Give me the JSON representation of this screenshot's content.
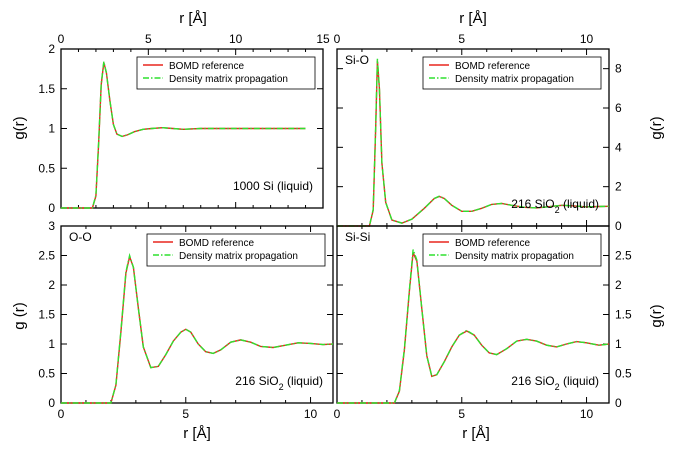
{
  "figure": {
    "top_xlabel_left": "r [Å]",
    "top_xlabel_right": "r [Å]",
    "bottom_xlabel_left": "r [Å]",
    "bottom_xlabel_right": "r [Å]",
    "ylabel_left_top": "g(r)",
    "ylabel_left_bottom": "g (r)",
    "ylabel_right_top": "g(r)",
    "ylabel_right_bottom": "g(r)"
  },
  "colors": {
    "reference": "#e8271f",
    "propagation": "#2fe02f"
  },
  "chart_data": [
    {
      "type": "line",
      "panel": "top-left",
      "label": "",
      "annotation": "1000 Si (liquid)",
      "xlim": [
        0,
        15
      ],
      "ylim": [
        0,
        2
      ],
      "xticks": [
        0,
        5,
        10,
        15
      ],
      "yticks": [
        0,
        0.5,
        1,
        1.5,
        2
      ],
      "xtick_labels": [
        "0",
        "5",
        "10",
        "15"
      ],
      "ytick_labels": [
        "0",
        "0.5",
        "1",
        "1.5",
        "2"
      ],
      "legend": [
        "BOMD reference",
        "Density matrix propagation"
      ],
      "legend_position": "top-right",
      "series": [
        {
          "name": "BOMD reference",
          "style": "solid",
          "x": [
            0,
            1.8,
            2.0,
            2.15,
            2.3,
            2.45,
            2.6,
            2.8,
            3.0,
            3.2,
            3.5,
            3.8,
            4.2,
            4.7,
            5.2,
            5.8,
            6.4,
            7.0,
            8.0,
            9.0,
            10.0,
            11.0,
            12.0,
            13.0,
            14.0
          ],
          "y": [
            0,
            0,
            0.15,
            0.8,
            1.55,
            1.83,
            1.7,
            1.35,
            1.05,
            0.93,
            0.9,
            0.92,
            0.96,
            0.99,
            1.0,
            1.01,
            1.0,
            0.99,
            1.0,
            1.0,
            1.0,
            1.0,
            1.0,
            1.0,
            1.0
          ]
        },
        {
          "name": "Density matrix propagation",
          "style": "dash-dot",
          "x": [
            0,
            1.8,
            2.0,
            2.15,
            2.3,
            2.45,
            2.6,
            2.8,
            3.0,
            3.2,
            3.5,
            3.8,
            4.2,
            4.7,
            5.2,
            5.8,
            6.4,
            7.0,
            8.0,
            9.0,
            10.0,
            11.0,
            12.0,
            13.0,
            14.0
          ],
          "y": [
            0,
            0,
            0.16,
            0.82,
            1.56,
            1.84,
            1.7,
            1.35,
            1.05,
            0.93,
            0.9,
            0.92,
            0.96,
            0.99,
            1.0,
            1.01,
            1.0,
            0.99,
            1.0,
            1.0,
            1.0,
            1.0,
            1.0,
            1.0,
            1.0
          ]
        }
      ]
    },
    {
      "type": "line",
      "panel": "top-right",
      "label": "Si-O",
      "annotation": "216 SiO",
      "annotation_sub": "2",
      "annotation_tail": " (liquid)",
      "xlim": [
        0,
        10.9
      ],
      "ylim": [
        0,
        9
      ],
      "xticks": [
        0,
        5,
        10
      ],
      "yticks": [
        0,
        2,
        4,
        6,
        8
      ],
      "xtick_labels": [
        "0",
        "5",
        "10"
      ],
      "ytick_labels": [
        "0",
        "2",
        "4",
        "6",
        "8"
      ],
      "legend": [
        "BOMD reference",
        "Density matrix propagation"
      ],
      "legend_position": "top-right",
      "series": [
        {
          "name": "BOMD reference",
          "style": "solid",
          "x": [
            0,
            1.3,
            1.45,
            1.55,
            1.62,
            1.7,
            1.8,
            1.95,
            2.2,
            2.6,
            3.0,
            3.5,
            3.9,
            4.1,
            4.3,
            4.6,
            5.0,
            5.4,
            5.8,
            6.2,
            6.6,
            7.0,
            7.5,
            8.0,
            8.5,
            9.0,
            9.5,
            10.0,
            10.5,
            10.9
          ],
          "y": [
            0,
            0,
            0.8,
            5.0,
            8.4,
            7.0,
            3.2,
            1.2,
            0.3,
            0.15,
            0.35,
            0.9,
            1.4,
            1.5,
            1.4,
            1.05,
            0.75,
            0.75,
            0.9,
            1.1,
            1.15,
            1.05,
            0.95,
            0.92,
            0.98,
            1.05,
            1.02,
            0.97,
            0.99,
            1.0
          ]
        },
        {
          "name": "Density matrix propagation",
          "style": "dash-dot",
          "x": [
            0,
            1.3,
            1.45,
            1.55,
            1.62,
            1.7,
            1.8,
            1.95,
            2.2,
            2.6,
            3.0,
            3.5,
            3.9,
            4.1,
            4.3,
            4.6,
            5.0,
            5.4,
            5.8,
            6.2,
            6.6,
            7.0,
            7.5,
            8.0,
            8.5,
            9.0,
            9.5,
            10.0,
            10.5,
            10.9
          ],
          "y": [
            0,
            0,
            0.85,
            5.1,
            8.5,
            7.0,
            3.2,
            1.2,
            0.3,
            0.15,
            0.35,
            0.9,
            1.4,
            1.52,
            1.4,
            1.05,
            0.75,
            0.75,
            0.9,
            1.1,
            1.15,
            1.05,
            0.95,
            0.92,
            0.98,
            1.05,
            1.02,
            0.97,
            0.99,
            1.0
          ]
        }
      ]
    },
    {
      "type": "line",
      "panel": "bottom-left",
      "label": "O-O",
      "annotation": "216 SiO",
      "annotation_sub": "2",
      "annotation_tail": " (liquid)",
      "xlim": [
        0,
        10.9
      ],
      "ylim": [
        0,
        3
      ],
      "xticks": [
        0,
        5,
        10
      ],
      "yticks": [
        0,
        0.5,
        1,
        1.5,
        2,
        2.5,
        3
      ],
      "xtick_labels": [
        "0",
        "5",
        "10"
      ],
      "ytick_labels": [
        "0",
        "0.5",
        "1",
        "1.5",
        "2",
        "2.5",
        "3"
      ],
      "legend": [
        "BOMD reference",
        "Density matrix propagation"
      ],
      "legend_position": "top-right",
      "series": [
        {
          "name": "BOMD reference",
          "style": "solid",
          "x": [
            0,
            2.0,
            2.2,
            2.4,
            2.6,
            2.75,
            2.9,
            3.1,
            3.3,
            3.6,
            3.9,
            4.2,
            4.5,
            4.8,
            5.0,
            5.2,
            5.5,
            5.8,
            6.1,
            6.4,
            6.8,
            7.2,
            7.6,
            8.0,
            8.5,
            9.0,
            9.5,
            10.0,
            10.5,
            10.9
          ],
          "y": [
            0,
            0,
            0.3,
            1.2,
            2.2,
            2.48,
            2.3,
            1.6,
            0.95,
            0.6,
            0.62,
            0.82,
            1.05,
            1.2,
            1.25,
            1.2,
            1.0,
            0.87,
            0.84,
            0.9,
            1.03,
            1.07,
            1.03,
            0.96,
            0.94,
            0.98,
            1.02,
            1.01,
            0.99,
            1.0
          ]
        },
        {
          "name": "Density matrix propagation",
          "style": "dash-dot",
          "x": [
            0,
            2.0,
            2.2,
            2.4,
            2.6,
            2.75,
            2.9,
            3.1,
            3.3,
            3.6,
            3.9,
            4.2,
            4.5,
            4.8,
            5.0,
            5.2,
            5.5,
            5.8,
            6.1,
            6.4,
            6.8,
            7.2,
            7.6,
            8.0,
            8.5,
            9.0,
            9.5,
            10.0,
            10.5,
            10.9
          ],
          "y": [
            0,
            0,
            0.31,
            1.22,
            2.22,
            2.5,
            2.3,
            1.6,
            0.95,
            0.6,
            0.62,
            0.82,
            1.05,
            1.2,
            1.25,
            1.2,
            1.0,
            0.87,
            0.84,
            0.9,
            1.03,
            1.07,
            1.03,
            0.96,
            0.94,
            0.98,
            1.02,
            1.01,
            0.99,
            1.0
          ]
        }
      ]
    },
    {
      "type": "line",
      "panel": "bottom-right",
      "label": "Si-Si",
      "annotation": "216 SiO",
      "annotation_sub": "2",
      "annotation_tail": " (liquid)",
      "xlim": [
        0,
        10.9
      ],
      "ylim": [
        0,
        3
      ],
      "xticks": [
        0,
        5,
        10
      ],
      "yticks": [
        0,
        0.5,
        1,
        1.5,
        2,
        2.5
      ],
      "xtick_labels": [
        "0",
        "5",
        "10"
      ],
      "ytick_labels": [
        "0",
        "0.5",
        "1",
        "1.5",
        "2",
        "2.5"
      ],
      "legend": [
        "BOMD reference",
        "Density matrix propagation"
      ],
      "legend_position": "top-right",
      "series": [
        {
          "name": "BOMD reference",
          "style": "solid",
          "x": [
            0,
            2.3,
            2.5,
            2.7,
            2.9,
            3.05,
            3.2,
            3.4,
            3.6,
            3.8,
            4.0,
            4.3,
            4.6,
            4.9,
            5.2,
            5.5,
            5.8,
            6.1,
            6.4,
            6.8,
            7.2,
            7.6,
            8.0,
            8.4,
            8.8,
            9.2,
            9.6,
            10.0,
            10.5,
            10.9
          ],
          "y": [
            0,
            0,
            0.2,
            0.9,
            1.9,
            2.55,
            2.4,
            1.6,
            0.8,
            0.45,
            0.48,
            0.7,
            0.95,
            1.15,
            1.22,
            1.15,
            0.98,
            0.85,
            0.82,
            0.92,
            1.05,
            1.08,
            1.05,
            0.98,
            0.95,
            1.0,
            1.04,
            1.02,
            0.98,
            1.0
          ]
        },
        {
          "name": "Density matrix propagation",
          "style": "dash-dot",
          "x": [
            0,
            2.3,
            2.5,
            2.7,
            2.9,
            3.05,
            3.2,
            3.4,
            3.6,
            3.8,
            4.0,
            4.3,
            4.6,
            4.9,
            5.2,
            5.5,
            5.8,
            6.1,
            6.4,
            6.8,
            7.2,
            7.6,
            8.0,
            8.4,
            8.8,
            9.2,
            9.6,
            10.0,
            10.5,
            10.9
          ],
          "y": [
            0,
            0,
            0.21,
            0.92,
            1.92,
            2.6,
            2.42,
            1.6,
            0.8,
            0.45,
            0.48,
            0.7,
            0.95,
            1.15,
            1.23,
            1.15,
            0.98,
            0.85,
            0.82,
            0.92,
            1.05,
            1.08,
            1.05,
            0.98,
            0.95,
            1.0,
            1.04,
            1.02,
            0.98,
            1.0
          ]
        }
      ]
    }
  ]
}
